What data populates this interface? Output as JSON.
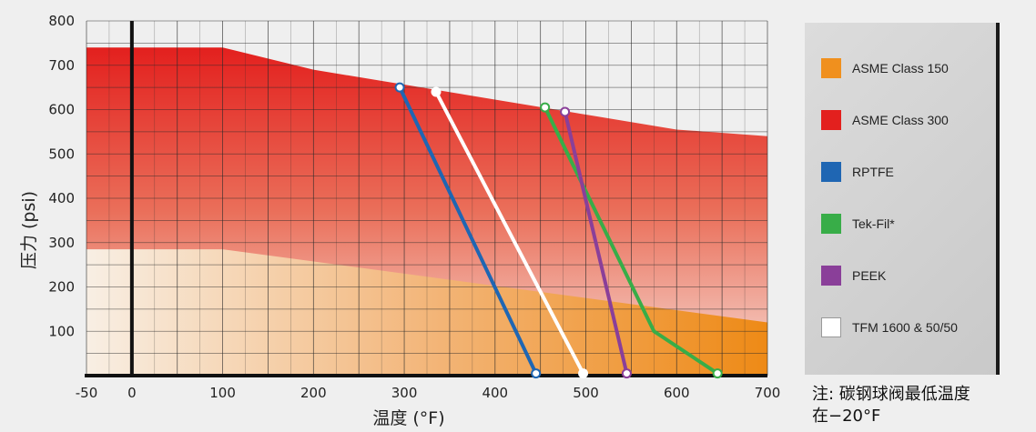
{
  "chart_data": {
    "type": "line",
    "xlabel": "温度 (°F)",
    "ylabel": "压力 (psi)",
    "xlim": [
      -50,
      700
    ],
    "ylim": [
      0,
      800
    ],
    "x_ticks": [
      -50,
      0,
      100,
      200,
      300,
      400,
      500,
      600,
      700
    ],
    "y_ticks": [
      100,
      200,
      300,
      400,
      500,
      600,
      700,
      800
    ],
    "grid": true,
    "legend_position": "right",
    "series": [
      {
        "name": "ASME Class 150",
        "type": "area",
        "color": "#f0901e",
        "points": [
          [
            -50,
            285
          ],
          [
            100,
            285
          ],
          [
            700,
            120
          ]
        ]
      },
      {
        "name": "ASME Class 300",
        "type": "area",
        "color": "#e3201e",
        "points": [
          [
            -50,
            740
          ],
          [
            100,
            740
          ],
          [
            200,
            690
          ],
          [
            600,
            555
          ],
          [
            700,
            540
          ]
        ]
      },
      {
        "name": "RPTFE",
        "color": "#1f66b3",
        "points": [
          [
            295,
            650
          ],
          [
            445,
            5
          ]
        ]
      },
      {
        "name": "Tek-Fil*",
        "color": "#38ad48",
        "points": [
          [
            455,
            605
          ],
          [
            575,
            100
          ],
          [
            645,
            5
          ]
        ]
      },
      {
        "name": "PEEK",
        "color": "#8a3f99",
        "points": [
          [
            477,
            595
          ],
          [
            545,
            5
          ]
        ]
      },
      {
        "name": "TFM 1600 & 50/50",
        "color": "#ffffff",
        "points": [
          [
            335,
            640
          ],
          [
            497,
            5
          ]
        ]
      }
    ]
  },
  "legend": {
    "items": [
      {
        "label": "ASME Class 150",
        "color": "#f0901e"
      },
      {
        "label": "ASME Class 300",
        "color": "#e3201e"
      },
      {
        "label": "RPTFE",
        "color": "#1f66b3"
      },
      {
        "label": "Tek-Fil*",
        "color": "#38ad48"
      },
      {
        "label": "PEEK",
        "color": "#8a3f99"
      },
      {
        "label": "TFM 1600 & 50/50",
        "color": "#ffffff"
      }
    ]
  },
  "note": {
    "line1": "注: 碳钢球阀最低温度",
    "line2": "在−20°F"
  }
}
